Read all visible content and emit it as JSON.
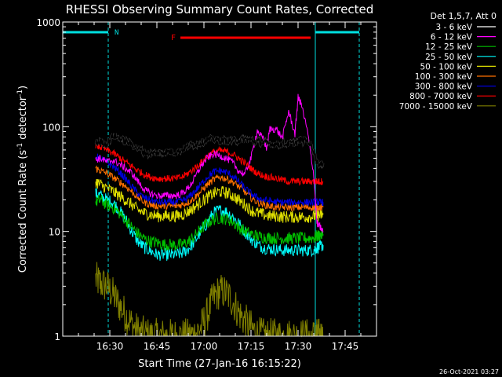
{
  "chart_data": {
    "type": "line",
    "title": "RHESSI Observing Summary Count Rates, Corrected",
    "xlabel": "Start Time (27-Jan-16 16:15:22)",
    "ylabel": "Corrected Count Rate (s⁻¹ detector⁻¹)",
    "ylabel_base": "Corrected Count Rate (s",
    "ylabel_sup1": "-1",
    "ylabel_mid": " detector",
    "ylabel_sup2": "-1",
    "ylabel_end": ")",
    "yscale": "log",
    "ylim": [
      1,
      1000
    ],
    "xlim_minutes": [
      0,
      100
    ],
    "x_ticks": [
      {
        "m": 15,
        "label": "16:30"
      },
      {
        "m": 30,
        "label": "16:45"
      },
      {
        "m": 45,
        "label": "17:00"
      },
      {
        "m": 60,
        "label": "17:15"
      },
      {
        "m": 75,
        "label": "17:30"
      },
      {
        "m": 90,
        "label": "17:45"
      }
    ],
    "y_ticks": [
      {
        "v": 1,
        "label": "1"
      },
      {
        "v": 10,
        "label": "10"
      },
      {
        "v": 100,
        "label": "100"
      },
      {
        "v": 1000,
        "label": "1000"
      }
    ],
    "legend_title": "Det 1,5,7, Att 0",
    "legend_position": "right",
    "timestamp": "26-Oct-2021 03:27",
    "night_label": "N",
    "flare_label": "F",
    "night_intervals": [
      [
        0,
        14.5
      ],
      [
        80.5,
        94.5
      ]
    ],
    "flare_interval": [
      37.5,
      79
    ],
    "series": [
      {
        "name": "3 - 6 keV",
        "color": "#000000",
        "x": [
          10.5,
          12,
          14,
          16,
          18,
          20,
          22,
          24,
          26,
          28,
          30,
          32,
          34,
          36,
          38,
          40,
          42,
          44,
          46,
          48,
          50,
          52,
          54,
          56,
          58,
          60,
          62,
          64,
          66,
          68,
          70,
          72,
          74,
          76,
          78,
          80,
          81,
          82,
          83
        ],
        "y": [
          70,
          72,
          68,
          82,
          78,
          72,
          68,
          62,
          57,
          55,
          56,
          57,
          58,
          57,
          60,
          66,
          68,
          70,
          75,
          76,
          74,
          73,
          74,
          74,
          76,
          74,
          72,
          70,
          69,
          68,
          68,
          69,
          70,
          75,
          74,
          60,
          45,
          44,
          45
        ]
      },
      {
        "name": "6 - 12 keV",
        "color": "#ff00ff",
        "x": [
          10.5,
          12,
          14,
          16,
          18,
          20,
          22,
          24,
          26,
          28,
          30,
          32,
          34,
          36,
          38,
          40,
          42,
          44,
          46,
          48,
          50,
          52,
          54,
          56,
          58,
          60,
          62,
          64,
          65,
          66,
          68,
          70,
          72,
          74,
          75,
          76,
          78,
          80,
          81,
          82,
          83
        ],
        "y": [
          48,
          50,
          46,
          48,
          44,
          40,
          36,
          30,
          25,
          23,
          22,
          22,
          22,
          22,
          23,
          26,
          32,
          42,
          50,
          55,
          53,
          50,
          46,
          38,
          35,
          50,
          92,
          75,
          62,
          95,
          95,
          78,
          140,
          85,
          190,
          165,
          90,
          35,
          12,
          11,
          10
        ]
      },
      {
        "name": "12 - 25 keV",
        "color": "#00c000",
        "x": [
          10.5,
          12,
          14,
          16,
          18,
          20,
          22,
          24,
          26,
          28,
          30,
          32,
          34,
          36,
          38,
          40,
          42,
          44,
          46,
          48,
          50,
          52,
          54,
          56,
          58,
          60,
          62,
          64,
          66,
          68,
          70,
          72,
          74,
          76,
          78,
          80,
          81,
          82,
          83
        ],
        "y": [
          19,
          20,
          18,
          17,
          15,
          13,
          11,
          9.5,
          8.5,
          8,
          7.8,
          7.5,
          7.5,
          7.4,
          7.5,
          8,
          9,
          10.5,
          12,
          13,
          13.5,
          13.2,
          12.5,
          11,
          10,
          9.5,
          9,
          8.8,
          8.7,
          8.6,
          8.6,
          8.6,
          8.6,
          8.6,
          8.6,
          8.7,
          9,
          9.2,
          9.4
        ]
      },
      {
        "name": "25 - 50 keV",
        "color": "#00ffff",
        "x": [
          10.5,
          12,
          14,
          16,
          18,
          20,
          22,
          24,
          26,
          28,
          30,
          32,
          34,
          36,
          38,
          40,
          42,
          44,
          46,
          48,
          50,
          52,
          54,
          56,
          58,
          60,
          62,
          64,
          66,
          68,
          70,
          72,
          74,
          76,
          78,
          80,
          81,
          82,
          83
        ],
        "y": [
          23,
          22,
          20,
          19,
          16,
          13,
          10,
          8,
          7,
          6.5,
          6,
          6,
          6,
          6,
          6.2,
          6.8,
          8,
          10,
          12,
          15,
          16,
          15.5,
          14,
          12,
          10,
          8.5,
          7.5,
          7,
          6.8,
          6.7,
          6.6,
          6.6,
          6.6,
          6.6,
          6.6,
          6.7,
          7,
          7.2,
          7.4
        ]
      },
      {
        "name": "50 - 100 keV",
        "color": "#e0e000",
        "x": [
          10.5,
          12,
          14,
          16,
          18,
          20,
          22,
          24,
          26,
          28,
          30,
          32,
          34,
          36,
          38,
          40,
          42,
          44,
          46,
          48,
          50,
          52,
          54,
          56,
          58,
          60,
          62,
          64,
          66,
          68,
          70,
          72,
          74,
          76,
          78,
          80,
          81,
          82,
          83
        ],
        "y": [
          30,
          28,
          26,
          24,
          22,
          20,
          18,
          16,
          15,
          14.5,
          14,
          14,
          14,
          14,
          14.5,
          15.5,
          17,
          19,
          21,
          23,
          24,
          23.5,
          22,
          20,
          18,
          16,
          15,
          14.5,
          14,
          14,
          13.8,
          13.8,
          13.8,
          13.8,
          13.8,
          14,
          14.2,
          14.3,
          14.5
        ]
      },
      {
        "name": "100 - 300 keV",
        "color": "#ff7000",
        "x": [
          10.5,
          12,
          14,
          16,
          18,
          20,
          22,
          24,
          26,
          28,
          30,
          32,
          34,
          36,
          38,
          40,
          42,
          44,
          46,
          48,
          50,
          52,
          54,
          56,
          58,
          60,
          62,
          64,
          66,
          68,
          70,
          72,
          74,
          76,
          78,
          80,
          81,
          82,
          83
        ],
        "y": [
          40,
          38,
          36,
          33,
          30,
          27,
          24,
          21,
          19,
          18,
          17.5,
          17.5,
          17.5,
          17.5,
          18,
          19,
          21,
          24,
          28,
          31,
          33,
          32,
          30,
          27,
          24,
          21,
          19,
          18,
          17.5,
          17,
          17,
          17,
          17,
          17,
          17,
          17,
          17,
          17,
          17
        ]
      },
      {
        "name": "300 - 800 keV",
        "color": "#0000e0",
        "x": [
          10.5,
          12,
          14,
          16,
          18,
          20,
          22,
          24,
          26,
          28,
          30,
          32,
          34,
          36,
          38,
          40,
          42,
          44,
          46,
          48,
          50,
          52,
          54,
          56,
          58,
          60,
          62,
          64,
          66,
          68,
          70,
          72,
          74,
          76,
          78,
          80,
          81,
          82,
          83
        ],
        "y": [
          52,
          50,
          46,
          42,
          37,
          32,
          27,
          23,
          21,
          20,
          19,
          19,
          19,
          19,
          19.5,
          21,
          24,
          28,
          33,
          37,
          38,
          37,
          34,
          30,
          26,
          23,
          21,
          20,
          19.5,
          19,
          19,
          19,
          19,
          19,
          19,
          19,
          19,
          19,
          19
        ]
      },
      {
        "name": "800 - 7000 keV",
        "color": "#ff0000",
        "x": [
          10.5,
          12,
          14,
          16,
          18,
          20,
          22,
          24,
          26,
          28,
          30,
          32,
          34,
          36,
          38,
          40,
          42,
          44,
          46,
          48,
          50,
          52,
          54,
          56,
          58,
          60,
          62,
          64,
          66,
          68,
          70,
          72,
          74,
          76,
          78,
          80,
          81,
          82,
          83
        ],
        "y": [
          66,
          64,
          60,
          56,
          51,
          46,
          42,
          38,
          35,
          33,
          32,
          32,
          32,
          32,
          33,
          36,
          40,
          45,
          52,
          57,
          59,
          58,
          55,
          50,
          45,
          40,
          36,
          34,
          33,
          32,
          31,
          30,
          30,
          30,
          30,
          30,
          30,
          30,
          30
        ]
      },
      {
        "name": "7000 - 15000 keV",
        "color": "#808000",
        "x": [
          10.5,
          12,
          14,
          16,
          18,
          20,
          22,
          24,
          26,
          28,
          30,
          32,
          34,
          36,
          38,
          40,
          42,
          44,
          46,
          48,
          50,
          52,
          54,
          56,
          58,
          60,
          62,
          64,
          66,
          68,
          70,
          72,
          74,
          76,
          78,
          80,
          81,
          82,
          83
        ],
        "y": [
          3.5,
          3.2,
          3,
          2.5,
          2,
          1.6,
          1.3,
          1.1,
          1.05,
          1,
          1,
          1,
          1,
          1,
          1,
          1,
          1.05,
          1.2,
          1.6,
          2.3,
          2.7,
          2.6,
          2.2,
          1.7,
          1.4,
          1.2,
          1.05,
          1,
          1,
          1,
          1,
          1,
          1,
          1,
          1,
          1,
          1,
          1,
          1
        ]
      }
    ]
  }
}
